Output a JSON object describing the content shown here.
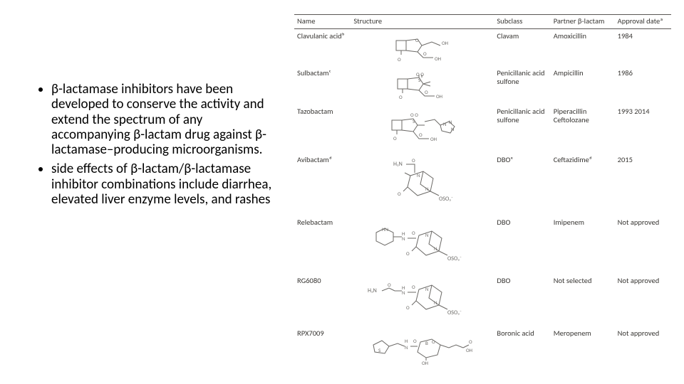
{
  "bullets": [
    "β-lactamase inhibitors have been developed to conserve the activity and extend the spectrum of any accompanying β-lactam drug against β-lactamase–producing microorganisms.",
    "side effects of β-lactam/β-lactamase inhibitor combinations include diarrhea, elevated liver enzyme levels, and rashes"
  ],
  "table": {
    "headers": {
      "name": "Name",
      "structure": "Structure",
      "subclass": "Subclass",
      "partner": "Partner β-lactam",
      "approval": "Approval dateª"
    },
    "rows": [
      {
        "name": "Clavulanic acidᵇ",
        "subclass": "Clavam",
        "partner": "Amoxicillin",
        "approval": "1984",
        "struct_h": 44
      },
      {
        "name": "Sulbactamᶜ",
        "subclass": "Penicillanic acid sulfone",
        "partner": "Ampicillin",
        "approval": "1986",
        "struct_h": 46
      },
      {
        "name": "Tazobactam",
        "subclass": "Penicillanic acid sulfone",
        "partner": "Piperacillin Ceftolozane",
        "approval": "1993 2014",
        "struct_h": 60
      },
      {
        "name": "Avibactamᵈ",
        "subclass": "DBOᵉ",
        "partner": "Ceftazidimeᵈ",
        "approval": "2015",
        "struct_h": 80
      },
      {
        "name": "Relebactam",
        "subclass": "DBO",
        "partner": "Imipenem",
        "approval": "Not approved",
        "struct_h": 74
      },
      {
        "name": "RG6080",
        "subclass": "DBO",
        "partner": "Not selected",
        "approval": "Not approved",
        "struct_h": 66
      },
      {
        "name": "RPX7009",
        "subclass": "Boronic acid",
        "partner": "Meropenem",
        "approval": "Not approved",
        "struct_h": 50
      }
    ]
  },
  "style": {
    "text_color": "#000000",
    "table_text_color": "#393734",
    "table_rule_color": "#595754",
    "struct_stroke": "#6b6966",
    "bullet_fontsize": 19,
    "table_fontsize": 10.5
  }
}
